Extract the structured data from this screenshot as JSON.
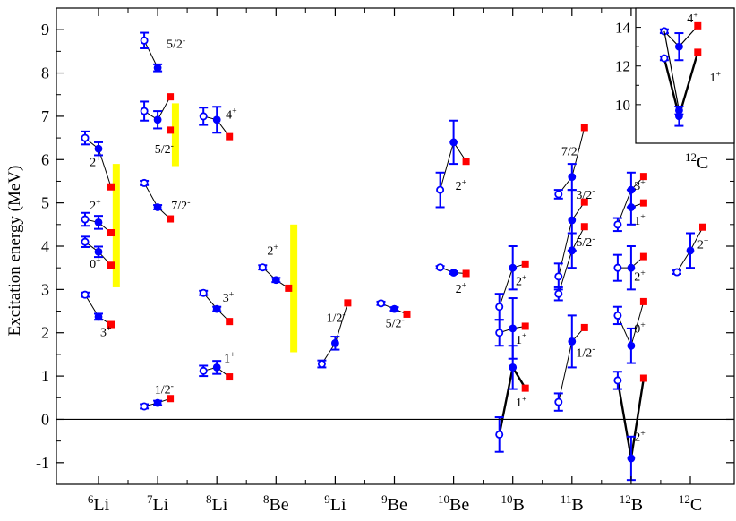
{
  "chart_data": {
    "type": "scatter",
    "ylabel": "Excitation energy (MeV)",
    "ylim": [
      -1.5,
      9.5
    ],
    "yticks": [
      "-1",
      "0",
      "1",
      "2",
      "3",
      "4",
      "5",
      "6",
      "7",
      "8",
      "9"
    ],
    "zero_line": 0,
    "nuclei": [
      {
        "mass": "6",
        "sym": "Li",
        "x": 1
      },
      {
        "mass": "7",
        "sym": "Li",
        "x": 2
      },
      {
        "mass": "8",
        "sym": "Li",
        "x": 3
      },
      {
        "mass": "8",
        "sym": "Be",
        "x": 4
      },
      {
        "mass": "9",
        "sym": "Li",
        "x": 5
      },
      {
        "mass": "9",
        "sym": "Be",
        "x": 6
      },
      {
        "mass": "10",
        "sym": "Be",
        "x": 7
      },
      {
        "mass": "10",
        "sym": "B",
        "x": 8
      },
      {
        "mass": "11",
        "sym": "B",
        "x": 9
      },
      {
        "mass": "12",
        "sym": "B",
        "x": 10
      },
      {
        "mass": "12",
        "sym": "C",
        "x": 11
      }
    ],
    "series": [
      {
        "name": "open",
        "marker": "open-circle",
        "color": "#0000ff"
      },
      {
        "name": "filled",
        "marker": "filled-circle",
        "color": "#0000ff"
      },
      {
        "name": "experiment",
        "marker": "square",
        "color": "#ff0000"
      }
    ],
    "bands": [
      {
        "x": 1.3,
        "ymin": 3.05,
        "ymax": 5.9,
        "color": "#ffff00"
      },
      {
        "x": 2.3,
        "ymin": 5.85,
        "ymax": 7.3,
        "color": "#ffff00"
      },
      {
        "x": 4.3,
        "ymin": 1.55,
        "ymax": 4.5,
        "color": "#ffff00"
      }
    ],
    "levels": [
      {
        "x": 1,
        "open": 6.5,
        "openErr": 0.15,
        "filled": 6.25,
        "filledErr": 0.15,
        "exp": 5.37,
        "label": "2",
        "sup": "+",
        "lx": 0.85,
        "ly": 5.85
      },
      {
        "x": 1,
        "open": 4.62,
        "openErr": 0.15,
        "filled": 4.55,
        "filledErr": 0.15,
        "exp": 4.31,
        "label": "2",
        "sup": "+",
        "lx": 0.85,
        "ly": 4.85
      },
      {
        "x": 1,
        "open": 4.1,
        "openErr": 0.12,
        "filled": 3.87,
        "filledErr": 0.12,
        "exp": 3.56,
        "label": "0",
        "sup": "+",
        "lx": 0.85,
        "ly": 3.5
      },
      {
        "x": 1,
        "open": 2.88,
        "openErr": 0.05,
        "filled": 2.37,
        "filledErr": 0.07,
        "exp": 2.19,
        "label": "3",
        "sup": "+",
        "lx": 1.03,
        "ly": 1.92
      },
      {
        "x": 2,
        "open": 8.75,
        "openErr": 0.18,
        "filled": 8.12,
        "filledErr": 0.08,
        "exp": null,
        "label": "5/2",
        "sup": "-",
        "lx": 2.15,
        "ly": 8.58
      },
      {
        "x": 2,
        "open": 7.12,
        "openErr": 0.22,
        "filled": 6.92,
        "filledErr": 0.2,
        "exp": 7.45,
        "label": null,
        "sup": null
      },
      {
        "x": 2,
        "open": null,
        "openErr": null,
        "filled": null,
        "filledErr": null,
        "exp": 6.68,
        "label": "5/2",
        "sup": "-",
        "lx": 1.95,
        "ly": 6.15
      },
      {
        "x": 2,
        "open": 5.46,
        "openErr": 0.05,
        "filled": 4.9,
        "filledErr": 0.05,
        "exp": 4.63,
        "label": "7/2",
        "sup": "-",
        "lx": 2.23,
        "ly": 4.85
      },
      {
        "x": 2,
        "open": 0.3,
        "openErr": 0.05,
        "filled": 0.38,
        "filledErr": 0.05,
        "exp": 0.48,
        "label": "1/2",
        "sup": "-",
        "lx": 1.95,
        "ly": 0.6
      },
      {
        "x": 3,
        "open": 7.0,
        "openErr": 0.2,
        "filled": 6.92,
        "filledErr": 0.3,
        "exp": 6.53,
        "label": "4",
        "sup": "+",
        "lx": 3.15,
        "ly": 6.95
      },
      {
        "x": 3,
        "open": 2.92,
        "openErr": 0.05,
        "filled": 2.55,
        "filledErr": 0.05,
        "exp": 2.26,
        "label": "3",
        "sup": "+",
        "lx": 3.1,
        "ly": 2.72
      },
      {
        "x": 3,
        "open": 1.12,
        "openErr": 0.12,
        "filled": 1.2,
        "filledErr": 0.15,
        "exp": 0.98,
        "label": "1",
        "sup": "+",
        "lx": 3.12,
        "ly": 1.32
      },
      {
        "x": 4,
        "open": 3.51,
        "openErr": 0.05,
        "filled": 3.22,
        "filledErr": 0.05,
        "exp": 3.03,
        "label": "2",
        "sup": "+",
        "lx": 3.85,
        "ly": 3.8
      },
      {
        "x": 5,
        "open": 1.28,
        "openErr": 0.08,
        "filled": 1.76,
        "filledErr": 0.15,
        "exp": 2.69,
        "label": "1/2",
        "sup": "-",
        "lx": 4.85,
        "ly": 2.25
      },
      {
        "x": 6,
        "open": 2.68,
        "openErr": 0.04,
        "filled": 2.55,
        "filledErr": 0.04,
        "exp": 2.43,
        "label": "5/2",
        "sup": "-",
        "lx": 5.85,
        "ly": 2.13
      },
      {
        "x": 7,
        "open": 5.3,
        "openErr": 0.4,
        "filled": 6.4,
        "filledErr": 0.5,
        "exp": 5.96,
        "label": "2",
        "sup": "+",
        "lx": 7.03,
        "ly": 5.3
      },
      {
        "x": 7,
        "open": 3.51,
        "openErr": 0.03,
        "filled": 3.39,
        "filledErr": 0.03,
        "exp": 3.37,
        "label": "2",
        "sup": "+",
        "lx": 7.03,
        "ly": 2.92
      },
      {
        "x": 8,
        "open": 2.6,
        "openErr": 0.3,
        "filled": 3.5,
        "filledErr": 0.5,
        "exp": 3.59,
        "label": "2",
        "sup": "+",
        "lx": 8.05,
        "ly": 3.1
      },
      {
        "x": 8,
        "open": 2.0,
        "openErr": 0.3,
        "filled": 2.1,
        "filledErr": 0.7,
        "exp": 2.15,
        "label": "1",
        "sup": "+",
        "lx": 8.05,
        "ly": 1.75
      },
      {
        "x": 8,
        "open": -0.35,
        "openErr": 0.4,
        "filled": 1.2,
        "filledErr": 0.5,
        "exp": 0.72,
        "label": "1",
        "sup": "+",
        "lx": 8.05,
        "ly": 0.3,
        "thick": true
      },
      {
        "x": 9,
        "open": 5.2,
        "openErr": 0.1,
        "filled": 5.6,
        "filledErr": 0.3,
        "exp": 6.74,
        "label": "7/2",
        "sup": "-",
        "lx": 8.82,
        "ly": 6.1
      },
      {
        "x": 9,
        "open": 3.3,
        "openErr": 0.3,
        "filled": 4.6,
        "filledErr": 0.7,
        "exp": 5.02,
        "label": "3/2",
        "sup": "-",
        "lx": 9.07,
        "ly": 5.1
      },
      {
        "x": 9,
        "open": 2.9,
        "openErr": 0.15,
        "filled": 3.9,
        "filledErr": 0.4,
        "exp": 4.45,
        "label": "5/2",
        "sup": "-",
        "lx": 9.07,
        "ly": 4.0
      },
      {
        "x": 9,
        "open": 0.4,
        "openErr": 0.2,
        "filled": 1.8,
        "filledErr": 0.6,
        "exp": 2.12,
        "label": "1/2",
        "sup": "-",
        "lx": 9.07,
        "ly": 1.45
      },
      {
        "x": 10,
        "open": 4.5,
        "openErr": 0.15,
        "filled": 5.3,
        "filledErr": 0.4,
        "exp": 5.61,
        "label": "3",
        "sup": "+",
        "lx": 10.05,
        "ly": 5.3
      },
      {
        "x": 10,
        "open": null,
        "openErr": null,
        "filled": 4.9,
        "filledErr": 0.4,
        "exp": 5.0,
        "label": "1",
        "sup": "+",
        "lx": 10.05,
        "ly": 4.5
      },
      {
        "x": 10,
        "open": 3.5,
        "openErr": 0.3,
        "filled": 3.5,
        "filledErr": 0.5,
        "exp": 3.76,
        "label": "2",
        "sup": "+",
        "lx": 10.05,
        "ly": 3.2
      },
      {
        "x": 10,
        "open": 2.4,
        "openErr": 0.2,
        "filled": 1.7,
        "filledErr": 0.4,
        "exp": 2.72,
        "label": "0",
        "sup": "+",
        "lx": 10.05,
        "ly": 2.0
      },
      {
        "x": 10,
        "open": 0.9,
        "openErr": 0.2,
        "filled": -0.9,
        "filledErr": 0.5,
        "exp": 0.95,
        "label": "2",
        "sup": "+",
        "lx": 10.05,
        "ly": -0.5,
        "thick": true
      },
      {
        "x": 11,
        "open": 3.4,
        "openErr": 0.04,
        "filled": 3.9,
        "filledErr": 0.4,
        "exp": 4.44,
        "label": "2",
        "sup": "+",
        "lx": 11.12,
        "ly": 3.95
      }
    ],
    "inset": {
      "ylim": [
        8,
        15
      ],
      "yticks": [
        "10",
        "12",
        "14"
      ],
      "label_mass": "12",
      "label_sym": "C",
      "levels": [
        {
          "open": 13.8,
          "openErr": 0.1,
          "filled": 13.0,
          "filledErr": 0.7,
          "exp": 14.08,
          "label": "4",
          "sup": "+",
          "lx": 0.52,
          "ly": 14.25
        },
        {
          "open": 12.4,
          "openErr": 0.1,
          "filled": 9.4,
          "filledErr": 0.5,
          "exp": 12.71,
          "label": "1",
          "sup": "+",
          "lx": 0.75,
          "ly": 11.2,
          "thick": true
        },
        {
          "open": null,
          "openErr": null,
          "filled": 9.7,
          "filledErr": 0.2,
          "exp": null,
          "label": null,
          "sup": null,
          "link": "open:13.8"
        }
      ]
    }
  }
}
